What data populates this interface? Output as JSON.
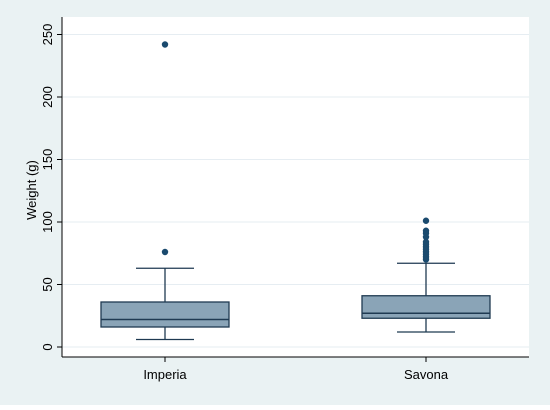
{
  "chart_data": {
    "type": "box",
    "ylabel": "Weight (g)",
    "xlabel": "",
    "ylim": [
      -5,
      260
    ],
    "yticks": [
      0,
      50,
      100,
      150,
      200,
      250
    ],
    "ytick_labels": [
      "0",
      "50",
      "100",
      "150",
      "200",
      "250"
    ],
    "grid": true,
    "colors": {
      "box_fill": "#8aa4b7",
      "box_stroke": "#1f3a52",
      "outlier": "#1a4a6e",
      "grid": "#e6edf2",
      "background": "#eaf2f3",
      "plot_background": "#ffffff"
    },
    "categories": [
      "Imperia",
      "Savona"
    ],
    "boxes": [
      {
        "category": "Imperia",
        "whisker_low": 6,
        "q1": 16,
        "median": 22,
        "q3": 36,
        "whisker_high": 63,
        "outliers": [
          76,
          242
        ]
      },
      {
        "category": "Savona",
        "whisker_low": 12,
        "q1": 23,
        "median": 27,
        "q3": 41,
        "whisker_high": 67,
        "outliers": [
          70,
          72,
          74,
          76,
          78,
          80,
          82,
          84,
          88,
          91,
          93,
          101
        ]
      }
    ]
  }
}
